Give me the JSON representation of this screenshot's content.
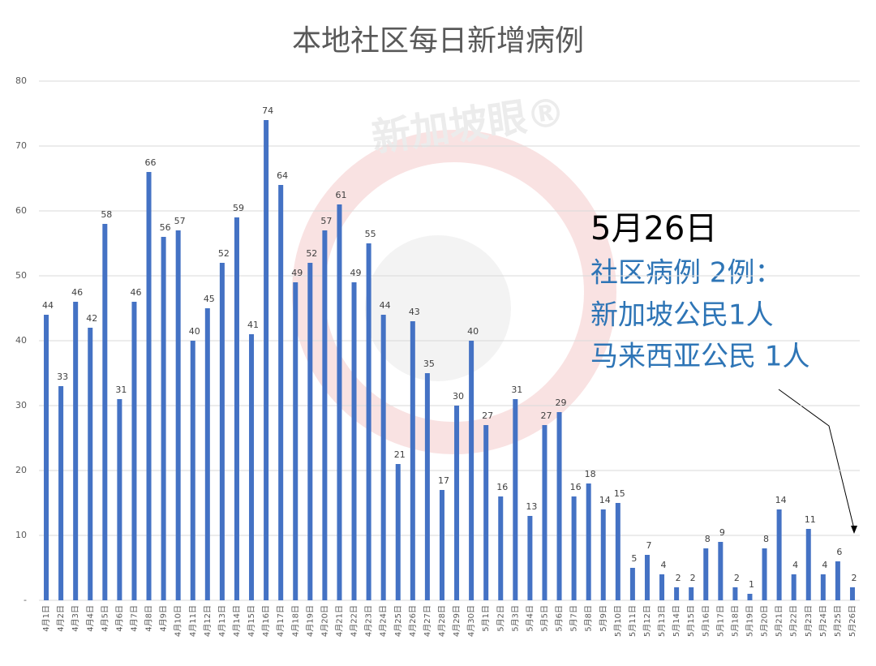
{
  "chart_data": {
    "type": "bar",
    "title": "本地社区每日新增病例",
    "categories": [
      "4月1日",
      "4月2日",
      "4月3日",
      "4月4日",
      "4月5日",
      "4月6日",
      "4月7日",
      "4月8日",
      "4月9日",
      "4月10日",
      "4月11日",
      "4月12日",
      "4月13日",
      "4月14日",
      "4月15日",
      "4月16日",
      "4月17日",
      "4月18日",
      "4月19日",
      "4月20日",
      "4月21日",
      "4月22日",
      "4月23日",
      "4月24日",
      "4月25日",
      "4月26日",
      "4月27日",
      "4月28日",
      "4月29日",
      "4月30日",
      "5月1日",
      "5月2日",
      "5月3日",
      "5月4日",
      "5月5日",
      "5月6日",
      "5月7日",
      "5月8日",
      "5月9日",
      "5月10日",
      "5月11日",
      "5月12日",
      "5月13日",
      "5月14日",
      "5月15日",
      "5月16日",
      "5月17日",
      "5月18日",
      "5月19日",
      "5月20日",
      "5月21日",
      "5月22日",
      "5月23日",
      "5月24日",
      "5月25日",
      "5月26日"
    ],
    "values": [
      44,
      33,
      46,
      42,
      58,
      31,
      46,
      66,
      56,
      57,
      40,
      45,
      52,
      59,
      41,
      74,
      64,
      49,
      52,
      57,
      61,
      49,
      55,
      44,
      21,
      43,
      35,
      17,
      30,
      40,
      27,
      16,
      31,
      13,
      27,
      29,
      16,
      18,
      14,
      15,
      5,
      7,
      4,
      2,
      2,
      8,
      9,
      2,
      1,
      8,
      14,
      4,
      11,
      4,
      6,
      2
    ],
    "color": "#4472c4",
    "ylim": [
      0,
      80
    ],
    "yticks": [
      {
        "value": 0,
        "label": "-"
      },
      10,
      20,
      30,
      40,
      50,
      60,
      70,
      80
    ],
    "grid": true,
    "annotation": {
      "date": "5月26日",
      "lines": [
        "社区病例 2例：",
        "新加坡公民1人",
        "马来西亚公民 1人"
      ]
    },
    "watermark": "新加坡眼®"
  }
}
